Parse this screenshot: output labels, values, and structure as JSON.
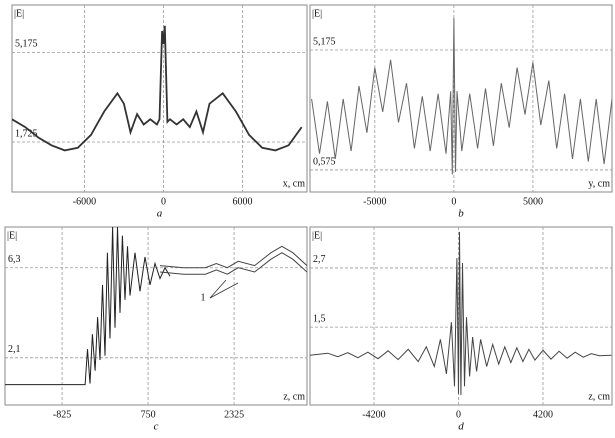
{
  "chart_data": [
    {
      "type": "line",
      "caption": "a",
      "ylabel": "|E|",
      "xlabel": "x, cm",
      "xlim": [
        -11500,
        10900
      ],
      "ylim": [
        -0.2,
        7.0
      ],
      "xticks": [
        -6000,
        0,
        6000
      ],
      "yticks": [
        {
          "value": 1.725,
          "label": "1,725"
        },
        {
          "value": 5.175,
          "label": "5,175"
        }
      ],
      "grid": true,
      "series": [
        {
          "color": "#333333",
          "x": [
            -11500,
            -10500,
            -9500,
            -8500,
            -7500,
            -6500,
            -5500,
            -4500,
            -3500,
            -3000,
            -2500,
            -2000,
            -1500,
            -1000,
            -500,
            -300,
            -100,
            0,
            100,
            300,
            500,
            1000,
            1500,
            2000,
            2500,
            3000,
            3500,
            4500,
            5500,
            6500,
            7500,
            8500,
            9500,
            10500
          ],
          "values": [
            2.6,
            2.3,
            1.9,
            1.6,
            1.4,
            1.5,
            2.0,
            2.9,
            3.6,
            3.2,
            2.1,
            2.8,
            2.4,
            2.6,
            2.4,
            2.6,
            6.0,
            5.5,
            6.2,
            2.5,
            2.6,
            2.4,
            2.6,
            2.3,
            2.9,
            2.1,
            3.2,
            3.6,
            2.9,
            2.0,
            1.5,
            1.4,
            1.6,
            2.3
          ]
        }
      ]
    },
    {
      "type": "line",
      "caption": "b",
      "ylabel": "|E|",
      "xlabel": "y, cm",
      "xlim": [
        -9100,
        10000
      ],
      "ylim": [
        -0.27,
        6.9
      ],
      "xticks": [
        -5000,
        0,
        5000
      ],
      "yticks": [
        {
          "value": 0.575,
          "label": "0,575"
        },
        {
          "value": 5.175,
          "label": "5,175"
        }
      ],
      "grid": true,
      "series": [
        {
          "color": "#666666",
          "x": [
            -9000,
            -8500,
            -8000,
            -7500,
            -7000,
            -6500,
            -6000,
            -5500,
            -5000,
            -4500,
            -4000,
            -3500,
            -3000,
            -2500,
            -2000,
            -1500,
            -1000,
            -500,
            -200,
            -100,
            0,
            100,
            200,
            500,
            1000,
            1500,
            2000,
            2500,
            3000,
            3500,
            4000,
            4500,
            5000,
            5500,
            6000,
            6500,
            7000,
            7500,
            8000,
            8500,
            9000,
            9500,
            10000
          ],
          "values": [
            3.3,
            1.2,
            3.2,
            1.0,
            3.3,
            1.3,
            3.8,
            2.0,
            4.5,
            2.8,
            4.8,
            2.4,
            3.9,
            1.4,
            3.4,
            1.3,
            3.5,
            1.2,
            3.6,
            0.4,
            6.4,
            0.5,
            3.6,
            1.3,
            3.5,
            1.4,
            3.7,
            1.5,
            3.9,
            2.2,
            4.5,
            2.7,
            4.7,
            2.3,
            4.0,
            1.4,
            3.5,
            1.0,
            3.3,
            0.9,
            3.3,
            0.8,
            3.3
          ]
        }
      ]
    },
    {
      "type": "line",
      "caption": "c",
      "ylabel": "|E|",
      "xlabel": "z, cm",
      "annotation": "1",
      "xlim": [
        -1870,
        3660
      ],
      "ylim": [
        -0.1,
        8.2
      ],
      "xticks": [
        -825,
        750,
        2325
      ],
      "yticks": [
        {
          "value": 2.1,
          "label": "2,1"
        },
        {
          "value": 6.3,
          "label": "6,3"
        }
      ],
      "grid": true,
      "series": [
        {
          "color": "#222222",
          "x": [
            -1870,
            -404,
            -360,
            -313,
            -270,
            -221,
            -175,
            -130,
            -85,
            -38,
            5,
            53,
            100,
            145,
            190,
            236,
            280,
            328,
            374,
            419,
            510,
            602,
            693,
            785,
            876,
            968,
            1060,
            1151
          ],
          "values": [
            0.85,
            0.85,
            2.5,
            0.9,
            3.2,
            1.5,
            4.0,
            2.0,
            5.5,
            2.2,
            7.0,
            3.0,
            8.2,
            3.5,
            8.2,
            4.2,
            7.8,
            4.8,
            7.3,
            5.0,
            7.0,
            5.2,
            6.8,
            5.5,
            6.5,
            5.8,
            6.3,
            5.9
          ]
        },
        {
          "color": "#444444",
          "x": [
            968,
            1400,
            1800,
            2000,
            2200,
            2400,
            2700,
            3000,
            3200,
            3400,
            3660
          ],
          "values": [
            6.4,
            6.3,
            6.3,
            6.5,
            6.3,
            6.6,
            6.4,
            7.0,
            7.3,
            7.0,
            6.4
          ]
        },
        {
          "color": "#444444",
          "x": [
            968,
            1400,
            1800,
            2000,
            2200,
            2400,
            2700,
            3000,
            3200,
            3400,
            3660
          ],
          "values": [
            6.1,
            6.0,
            6.0,
            6.2,
            6.0,
            6.3,
            6.1,
            6.7,
            7.0,
            6.7,
            6.1
          ]
        }
      ]
    },
    {
      "type": "line",
      "caption": "d",
      "ylabel": "|E|",
      "xlabel": "z, cm",
      "xlim": [
        -7380,
        7630
      ],
      "ylim": [
        -0.08,
        3.53
      ],
      "xticks": [
        -4200,
        0,
        4200
      ],
      "yticks": [
        {
          "value": 1.5,
          "label": "1,5"
        },
        {
          "value": 2.7,
          "label": "2,7"
        }
      ],
      "grid": true,
      "series": [
        {
          "color": "#444444",
          "x": [
            -7380,
            -6500,
            -6000,
            -5500,
            -5000,
            -4500,
            -4000,
            -3500,
            -3000,
            -2500,
            -2000,
            -1600,
            -1200,
            -900,
            -600,
            -350,
            -200,
            -80,
            0,
            50,
            120,
            200,
            300,
            400,
            550,
            700,
            900,
            1100,
            1400,
            1700,
            2000,
            2300,
            2600,
            2900,
            3200,
            3500,
            3800,
            4200,
            4600,
            5000,
            5400,
            5800,
            6200,
            6600,
            7000,
            7600
          ],
          "values": [
            0.93,
            0.97,
            0.9,
            0.98,
            0.88,
            0.99,
            0.86,
            1.02,
            0.84,
            1.05,
            0.8,
            1.1,
            0.7,
            1.25,
            0.55,
            1.6,
            0.3,
            2.9,
            0.15,
            3.43,
            0.12,
            2.8,
            0.3,
            1.7,
            0.5,
            1.3,
            0.6,
            1.25,
            0.7,
            1.15,
            0.75,
            1.1,
            0.78,
            1.08,
            0.8,
            1.05,
            0.83,
            1.03,
            0.85,
            1.01,
            0.87,
            0.99,
            0.89,
            0.96,
            0.92,
            0.93
          ]
        }
      ]
    }
  ]
}
